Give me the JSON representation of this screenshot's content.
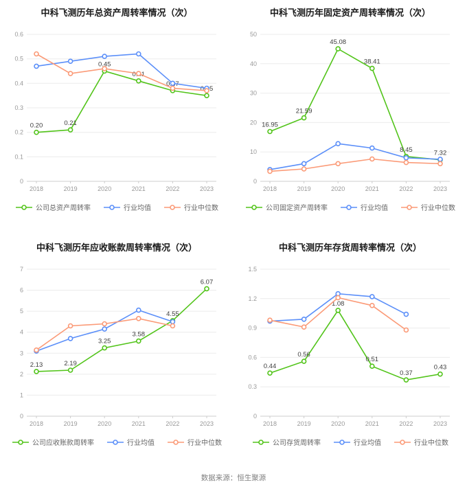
{
  "style": {
    "background": "#ffffff",
    "title_color": "#1a1a1a",
    "value_label_color": "#3d3d3d",
    "axis_text_color": "#999999",
    "axis_line_color": "#cccccc",
    "grid_color": "#ebebeb",
    "legend_text_color": "#666666",
    "footer_color": "#808080",
    "company_color": "#52c41a",
    "industry_avg_color": "#5b8ff9",
    "industry_median_color": "#fb9a77"
  },
  "footer": {
    "source": "数据来源：恒生聚源"
  },
  "chart_data": [
    {
      "id": "total-asset-turnover",
      "type": "line",
      "title": "中科飞测历年总资产周转率情况（次）",
      "xlabel": "",
      "ylabel": "",
      "categories": [
        "2018",
        "2019",
        "2020",
        "2021",
        "2022",
        "2023"
      ],
      "ylim": [
        0,
        0.6
      ],
      "yticks": [
        0,
        0.1,
        0.2,
        0.3,
        0.4,
        0.5,
        0.6
      ],
      "grid": true,
      "legend_position": "bottom",
      "series": [
        {
          "name": "公司总资产周转率",
          "role": "company",
          "color": "#52c41a",
          "values": [
            0.2,
            0.21,
            0.45,
            0.41,
            0.37,
            0.35
          ],
          "labels": [
            "0.20",
            "0.21",
            "0.45",
            "0.41",
            "0.37",
            "0.35"
          ]
        },
        {
          "name": "行业均值",
          "role": "industry-average",
          "color": "#5b8ff9",
          "values": [
            0.47,
            0.49,
            0.51,
            0.52,
            0.4,
            0.38
          ]
        },
        {
          "name": "行业中位数",
          "role": "industry-median",
          "color": "#fb9a77",
          "values": [
            0.52,
            0.44,
            0.46,
            0.44,
            0.38,
            0.37
          ]
        }
      ]
    },
    {
      "id": "fixed-asset-turnover",
      "type": "line",
      "title": "中科飞测历年固定资产周转率情况（次）",
      "xlabel": "",
      "ylabel": "",
      "categories": [
        "2018",
        "2019",
        "2020",
        "2021",
        "2022",
        "2023"
      ],
      "ylim": [
        0,
        50
      ],
      "yticks": [
        0,
        10,
        20,
        30,
        40,
        50
      ],
      "grid": true,
      "legend_position": "bottom",
      "series": [
        {
          "name": "公司固定资产周转率",
          "role": "company",
          "color": "#52c41a",
          "values": [
            16.95,
            21.59,
            45.08,
            38.41,
            8.45,
            7.32
          ],
          "labels": [
            "16.95",
            "21.59",
            "45.08",
            "38.41",
            "8.45",
            "7.32"
          ]
        },
        {
          "name": "行业均值",
          "role": "industry-average",
          "color": "#5b8ff9",
          "values": [
            4.0,
            6.0,
            12.8,
            11.3,
            8.0,
            7.5
          ]
        },
        {
          "name": "行业中位数",
          "role": "industry-median",
          "color": "#fb9a77",
          "values": [
            3.4,
            4.2,
            6.0,
            7.6,
            6.4,
            6.0
          ]
        }
      ]
    },
    {
      "id": "receivables-turnover",
      "type": "line",
      "title": "中科飞测历年应收账款周转率情况（次）",
      "xlabel": "",
      "ylabel": "",
      "categories": [
        "2018",
        "2019",
        "2020",
        "2021",
        "2022",
        "2023"
      ],
      "ylim": [
        0,
        7
      ],
      "yticks": [
        0,
        1,
        2,
        3,
        4,
        5,
        6,
        7
      ],
      "grid": true,
      "legend_position": "bottom",
      "series": [
        {
          "name": "公司应收账款周转率",
          "role": "company",
          "color": "#52c41a",
          "values": [
            2.13,
            2.19,
            3.25,
            3.58,
            4.55,
            6.07
          ],
          "labels": [
            "2.13",
            "2.19",
            "3.25",
            "3.58",
            "4.55",
            "6.07"
          ]
        },
        {
          "name": "行业均值",
          "role": "industry-average",
          "color": "#5b8ff9",
          "values": [
            3.1,
            3.7,
            4.15,
            5.05,
            4.5,
            null
          ]
        },
        {
          "name": "行业中位数",
          "role": "industry-median",
          "color": "#fb9a77",
          "values": [
            3.15,
            4.3,
            4.4,
            4.65,
            4.3,
            null
          ]
        }
      ]
    },
    {
      "id": "inventory-turnover",
      "type": "line",
      "title": "中科飞测历年存货周转率情况（次）",
      "xlabel": "",
      "ylabel": "",
      "categories": [
        "2018",
        "2019",
        "2020",
        "2021",
        "2022",
        "2023"
      ],
      "ylim": [
        0,
        1.5
      ],
      "yticks": [
        0,
        0.3,
        0.6,
        0.9,
        1.2,
        1.5
      ],
      "grid": true,
      "legend_position": "bottom",
      "series": [
        {
          "name": "公司存货周转率",
          "role": "company",
          "color": "#52c41a",
          "values": [
            0.44,
            0.56,
            1.08,
            0.51,
            0.37,
            0.43
          ],
          "labels": [
            "0.44",
            "0.56",
            "1.08",
            "0.51",
            "0.37",
            "0.43"
          ]
        },
        {
          "name": "行业均值",
          "role": "industry-average",
          "color": "#5b8ff9",
          "values": [
            0.97,
            0.99,
            1.25,
            1.22,
            1.04,
            null
          ]
        },
        {
          "name": "行业中位数",
          "role": "industry-median",
          "color": "#fb9a77",
          "values": [
            0.98,
            0.91,
            1.21,
            1.13,
            0.88,
            null
          ]
        }
      ]
    }
  ]
}
